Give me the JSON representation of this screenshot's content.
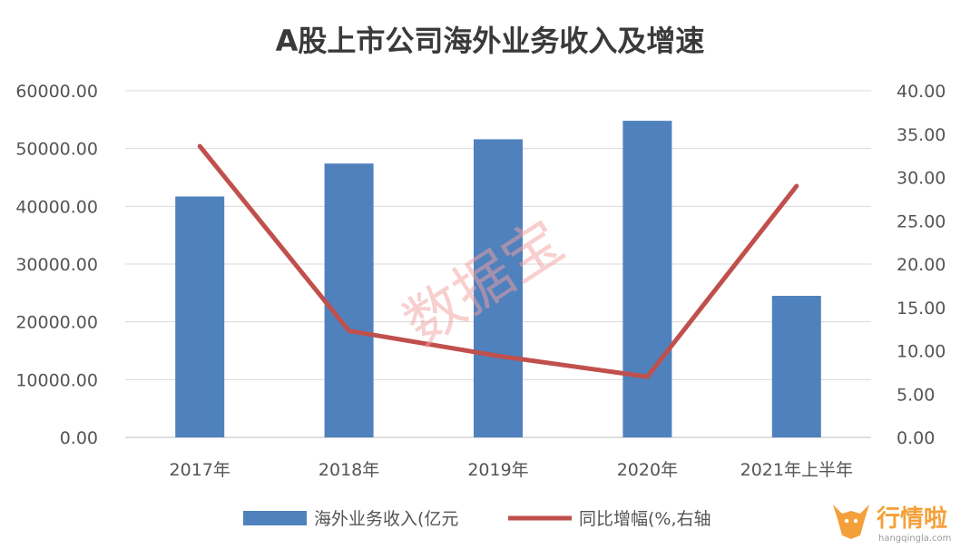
{
  "chart_data": {
    "type": "bar",
    "title": "A股上市公司海外业务收入及增速",
    "categories": [
      "2017年",
      "2018年",
      "2019年",
      "2020年",
      "2021年上半年"
    ],
    "series": [
      {
        "name": "海外业务收入(亿元",
        "type": "bar",
        "axis": "left",
        "color": "#4f81bd",
        "values": [
          41700,
          47400,
          51600,
          54800,
          24500
        ]
      },
      {
        "name": "同比增幅(%,右轴",
        "type": "line",
        "axis": "right",
        "color": "#c0504d",
        "values": [
          33.6,
          12.3,
          9.4,
          7.0,
          29.0
        ]
      }
    ],
    "ylim_left": [
      0,
      60000
    ],
    "ylim_right": [
      0,
      40
    ],
    "yticks_left": [
      "0.00",
      "10000.00",
      "20000.00",
      "30000.00",
      "40000.00",
      "50000.00",
      "60000.00"
    ],
    "yticks_right": [
      "0.00",
      "5.00",
      "10.00",
      "15.00",
      "20.00",
      "25.00",
      "30.00",
      "35.00",
      "40.00"
    ],
    "grid": true,
    "legend_position": "bottom"
  },
  "watermark": {
    "text": "数据宝",
    "color": "#f2a0a0"
  },
  "brand": {
    "name": "行情啦",
    "domain": "hangqingla.com",
    "icon": "bull-head-icon",
    "color": "#f4a03a"
  }
}
